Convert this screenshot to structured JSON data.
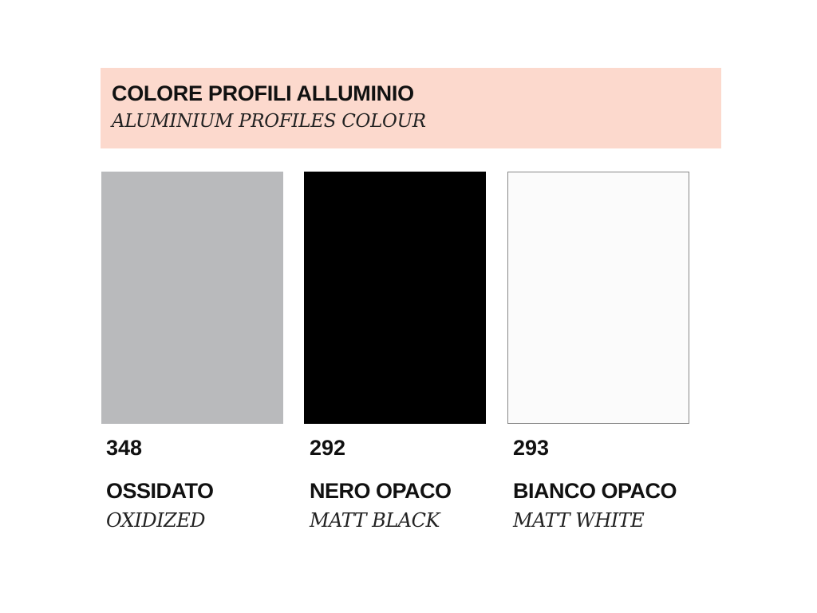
{
  "header": {
    "title": "COLORE PROFILI ALLUMINIO",
    "subtitle": "ALUMINIUM PROFILES COLOUR",
    "background_color": "#fcd9cd"
  },
  "colors": [
    {
      "code": "348",
      "name": "OSSIDATO",
      "name_en": "OXIDIZED",
      "swatch_color": "#b9babc"
    },
    {
      "code": "292",
      "name": "NERO OPACO",
      "name_en": "MATT BLACK",
      "swatch_color": "#000000"
    },
    {
      "code": "293",
      "name": "BIANCO OPACO",
      "name_en": "MATT WHITE",
      "swatch_color": "#fbfbfb"
    }
  ]
}
